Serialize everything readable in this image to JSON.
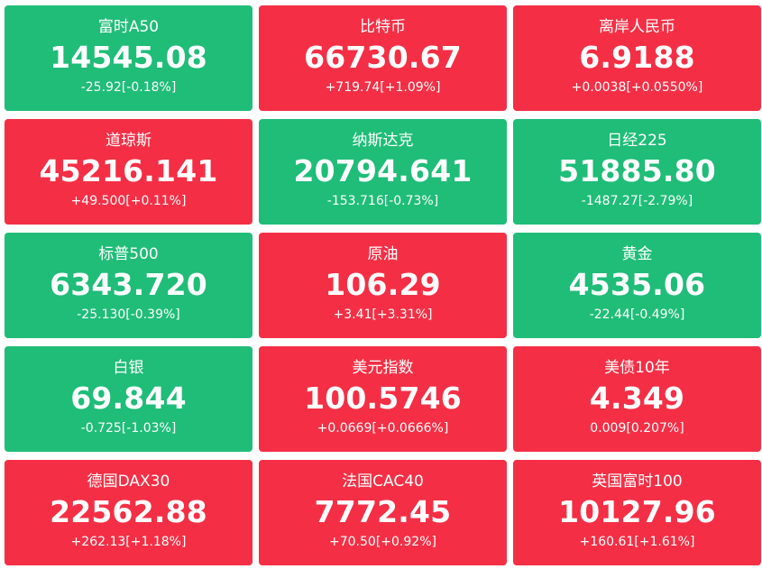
{
  "colors": {
    "up": "#f42f45",
    "down": "#1fbd78",
    "text": "#ffffff"
  },
  "quotes": [
    {
      "name": "富时A50",
      "price": "14545.08",
      "change": "-25.92[-0.18%]",
      "direction": "down"
    },
    {
      "name": "比特币",
      "price": "66730.67",
      "change": "+719.74[+1.09%]",
      "direction": "up"
    },
    {
      "name": "离岸人民币",
      "price": "6.9188",
      "change": "+0.0038[+0.0550%]",
      "direction": "up"
    },
    {
      "name": "道琼斯",
      "price": "45216.141",
      "change": "+49.500[+0.11%]",
      "direction": "up"
    },
    {
      "name": "纳斯达克",
      "price": "20794.641",
      "change": "-153.716[-0.73%]",
      "direction": "down"
    },
    {
      "name": "日经225",
      "price": "51885.80",
      "change": "-1487.27[-2.79%]",
      "direction": "down"
    },
    {
      "name": "标普500",
      "price": "6343.720",
      "change": "-25.130[-0.39%]",
      "direction": "down"
    },
    {
      "name": "原油",
      "price": "106.29",
      "change": "+3.41[+3.31%]",
      "direction": "up"
    },
    {
      "name": "黄金",
      "price": "4535.06",
      "change": "-22.44[-0.49%]",
      "direction": "down"
    },
    {
      "name": "白银",
      "price": "69.844",
      "change": "-0.725[-1.03%]",
      "direction": "down"
    },
    {
      "name": "美元指数",
      "price": "100.5746",
      "change": "+0.0669[+0.0666%]",
      "direction": "up"
    },
    {
      "name": "美债10年",
      "price": "4.349",
      "change": "0.009[0.207%]",
      "direction": "up"
    },
    {
      "name": "德国DAX30",
      "price": "22562.88",
      "change": "+262.13[+1.18%]",
      "direction": "up"
    },
    {
      "name": "法国CAC40",
      "price": "7772.45",
      "change": "+70.50[+0.92%]",
      "direction": "up"
    },
    {
      "name": "英国富时100",
      "price": "10127.96",
      "change": "+160.61[+1.61%]",
      "direction": "up"
    }
  ]
}
